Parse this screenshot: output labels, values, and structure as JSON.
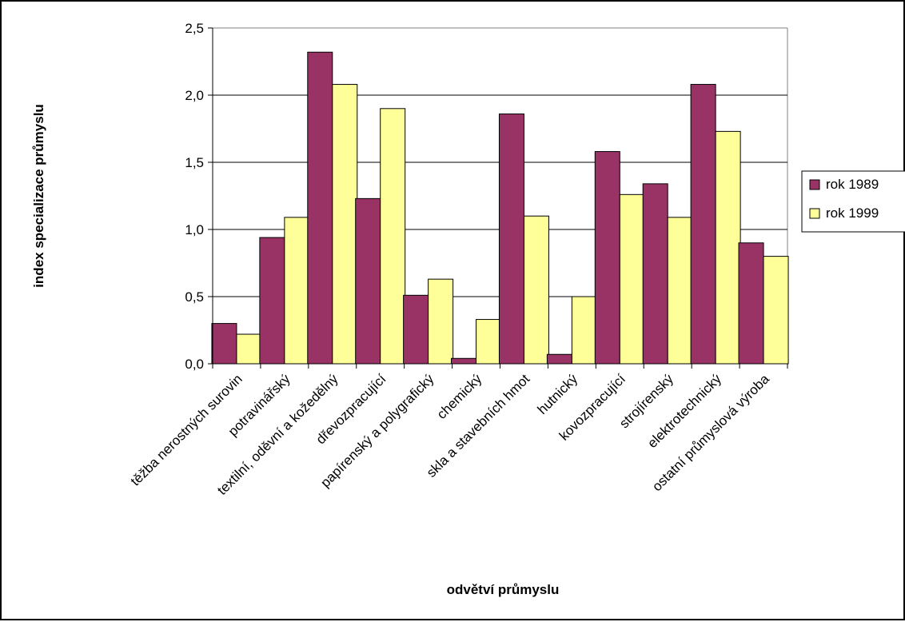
{
  "chart_data": {
    "type": "bar",
    "title": "",
    "xlabel": "odvětví průmyslu",
    "ylabel": "index specializace průmyslu",
    "ylim": [
      0,
      2.5
    ],
    "ytick_step": 0.5,
    "yticks": [
      "0,0",
      "0,5",
      "1,0",
      "1,5",
      "2,0",
      "2,5"
    ],
    "grid": true,
    "legend_position": "right",
    "categories": [
      "těžba nerostných surovin",
      "potravinářský",
      "textilní, oděvní a kožedělný",
      "dřevozpracující",
      "papírenský a polygrafický",
      "chemický",
      "skla a stavebních hmot",
      "hutnický",
      "kovozpracující",
      "strojírenský",
      "elektrotechnický",
      "ostatní průmyslová výroba"
    ],
    "series": [
      {
        "name": "rok 1989",
        "color": "#993366",
        "values": [
          0.3,
          0.94,
          2.32,
          1.23,
          0.51,
          0.04,
          1.86,
          0.07,
          1.58,
          1.34,
          2.08,
          0.9
        ]
      },
      {
        "name": "rok 1999",
        "color": "#FFFF99",
        "values": [
          0.22,
          1.09,
          2.08,
          1.9,
          0.63,
          0.33,
          1.1,
          0.5,
          1.26,
          1.09,
          1.73,
          0.8
        ]
      }
    ]
  }
}
